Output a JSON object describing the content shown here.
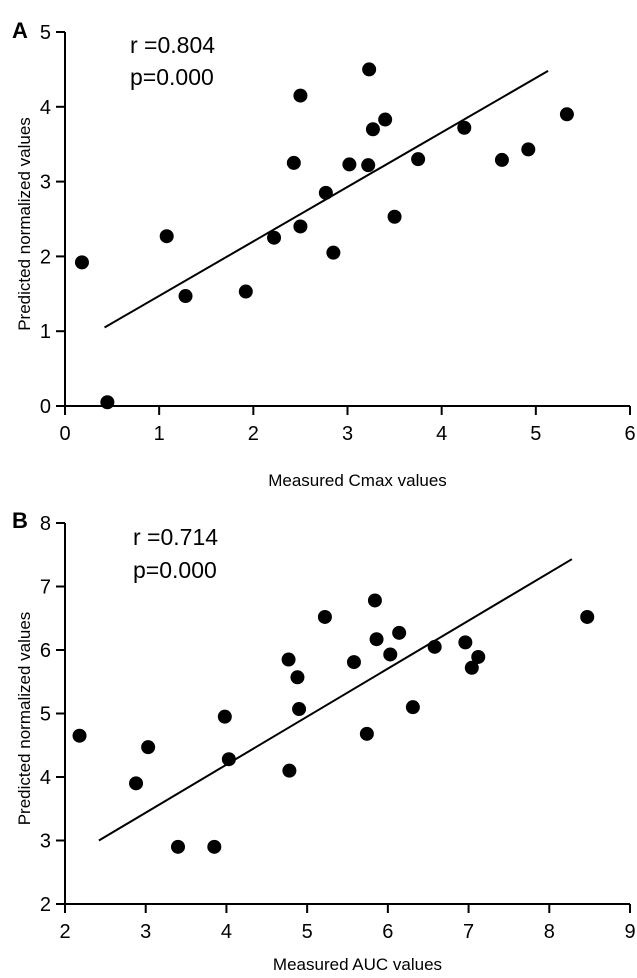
{
  "chart_data": [
    {
      "type": "scatter",
      "panel": "A",
      "xlabel": "Measured Cmax values",
      "ylabel": "Predicted  normalized values",
      "xlim": [
        0,
        6
      ],
      "ylim": [
        0,
        5
      ],
      "xticks": [
        "0",
        "1",
        "2",
        "3",
        "4",
        "5",
        "6"
      ],
      "yticks": [
        "0",
        "1",
        "2",
        "3",
        "4",
        "5"
      ],
      "annotations": [
        "r =0.804",
        "p=0.000"
      ],
      "points": [
        {
          "x": 0.18,
          "y": 1.92
        },
        {
          "x": 0.45,
          "y": 0.05
        },
        {
          "x": 1.08,
          "y": 2.27
        },
        {
          "x": 1.28,
          "y": 1.47
        },
        {
          "x": 1.92,
          "y": 1.53
        },
        {
          "x": 2.22,
          "y": 2.25
        },
        {
          "x": 2.43,
          "y": 3.25
        },
        {
          "x": 2.5,
          "y": 4.15
        },
        {
          "x": 2.5,
          "y": 2.4
        },
        {
          "x": 2.77,
          "y": 2.85
        },
        {
          "x": 2.85,
          "y": 2.05
        },
        {
          "x": 3.02,
          "y": 3.23
        },
        {
          "x": 3.22,
          "y": 3.22
        },
        {
          "x": 3.23,
          "y": 4.5
        },
        {
          "x": 3.27,
          "y": 3.7
        },
        {
          "x": 3.4,
          "y": 3.83
        },
        {
          "x": 3.5,
          "y": 2.53
        },
        {
          "x": 3.75,
          "y": 3.3
        },
        {
          "x": 4.24,
          "y": 3.72
        },
        {
          "x": 4.64,
          "y": 3.29
        },
        {
          "x": 4.92,
          "y": 3.43
        },
        {
          "x": 5.33,
          "y": 3.9
        }
      ],
      "fit_line": {
        "x": [
          0.42,
          5.13
        ],
        "y": [
          1.05,
          4.48
        ]
      }
    },
    {
      "type": "scatter",
      "panel": "B",
      "xlabel": "Measured AUC values",
      "ylabel": "Predicted  normalized values",
      "xlim": [
        2,
        9
      ],
      "ylim": [
        2,
        8
      ],
      "xticks": [
        "2",
        "3",
        "4",
        "5",
        "6",
        "7",
        "8",
        "9"
      ],
      "yticks": [
        "2",
        "3",
        "4",
        "5",
        "6",
        "7",
        "8"
      ],
      "annotations": [
        "r =0.714",
        "p=0.000"
      ],
      "points": [
        {
          "x": 2.18,
          "y": 4.65
        },
        {
          "x": 2.88,
          "y": 3.9
        },
        {
          "x": 3.03,
          "y": 4.47
        },
        {
          "x": 3.4,
          "y": 2.9
        },
        {
          "x": 3.85,
          "y": 2.9
        },
        {
          "x": 3.98,
          "y": 4.95
        },
        {
          "x": 4.03,
          "y": 4.28
        },
        {
          "x": 4.77,
          "y": 5.85
        },
        {
          "x": 4.78,
          "y": 4.1
        },
        {
          "x": 4.88,
          "y": 5.57
        },
        {
          "x": 4.9,
          "y": 5.07
        },
        {
          "x": 5.22,
          "y": 6.52
        },
        {
          "x": 5.58,
          "y": 5.81
        },
        {
          "x": 5.74,
          "y": 4.68
        },
        {
          "x": 5.84,
          "y": 6.78
        },
        {
          "x": 5.86,
          "y": 6.17
        },
        {
          "x": 6.03,
          "y": 5.93
        },
        {
          "x": 6.14,
          "y": 6.27
        },
        {
          "x": 6.31,
          "y": 5.1
        },
        {
          "x": 6.58,
          "y": 6.05
        },
        {
          "x": 6.96,
          "y": 6.12
        },
        {
          "x": 7.04,
          "y": 5.72
        },
        {
          "x": 7.12,
          "y": 5.89
        },
        {
          "x": 8.47,
          "y": 6.52
        }
      ],
      "fit_line": {
        "x": [
          2.42,
          8.28
        ],
        "y": [
          3.0,
          7.43
        ]
      }
    }
  ]
}
